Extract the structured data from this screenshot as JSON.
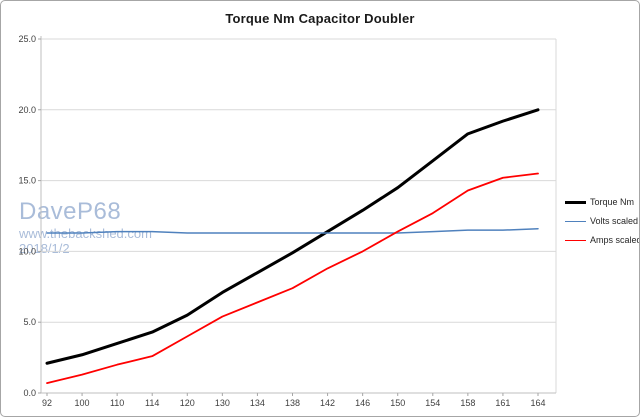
{
  "title": "Torque Nm Capacitor Doubler",
  "watermark": {
    "line1": "DaveP68",
    "line2": "www.thebackshed.com",
    "line3": "2018/1/2",
    "color": "#a9bcd9"
  },
  "colors": {
    "gridline": "#d9d9d9",
    "axis_line": "#bfbfbf",
    "tick": "#a6a6a6",
    "tick_text": "#404040",
    "border": "#a6a6a6",
    "background": "#ffffff"
  },
  "chart_data": {
    "type": "line",
    "title": "Torque Nm Capacitor Doubler",
    "xlabel": "",
    "ylabel": "",
    "categories": [
      92,
      100,
      110,
      114,
      120,
      130,
      134,
      138,
      142,
      146,
      150,
      154,
      158,
      161,
      164
    ],
    "series": [
      {
        "name": "Torque Nm",
        "color": "#000000",
        "stroke_width": 3,
        "values": [
          2.1,
          2.7,
          3.5,
          4.3,
          5.5,
          7.1,
          8.5,
          9.9,
          11.4,
          12.9,
          14.5,
          16.4,
          18.3,
          19.2,
          20.0
        ]
      },
      {
        "name": "Volts scaled",
        "color": "#4f81bd",
        "stroke_width": 1.5,
        "values": [
          11.3,
          11.3,
          11.4,
          11.4,
          11.3,
          11.3,
          11.3,
          11.3,
          11.3,
          11.3,
          11.3,
          11.4,
          11.5,
          11.5,
          11.6
        ]
      },
      {
        "name": "Amps scaled",
        "color": "#ff0000",
        "stroke_width": 1.8,
        "values": [
          0.7,
          1.3,
          2.0,
          2.6,
          4.0,
          5.4,
          6.4,
          7.4,
          8.8,
          10.0,
          11.4,
          12.7,
          14.3,
          15.2,
          15.5
        ]
      }
    ],
    "ylim": [
      0,
      25
    ],
    "ytick_step": 5,
    "ytick_labels": [
      "0.0",
      "5.0",
      "10.0",
      "15.0",
      "20.0",
      "25.0"
    ],
    "grid": true,
    "legend_position": "right"
  }
}
